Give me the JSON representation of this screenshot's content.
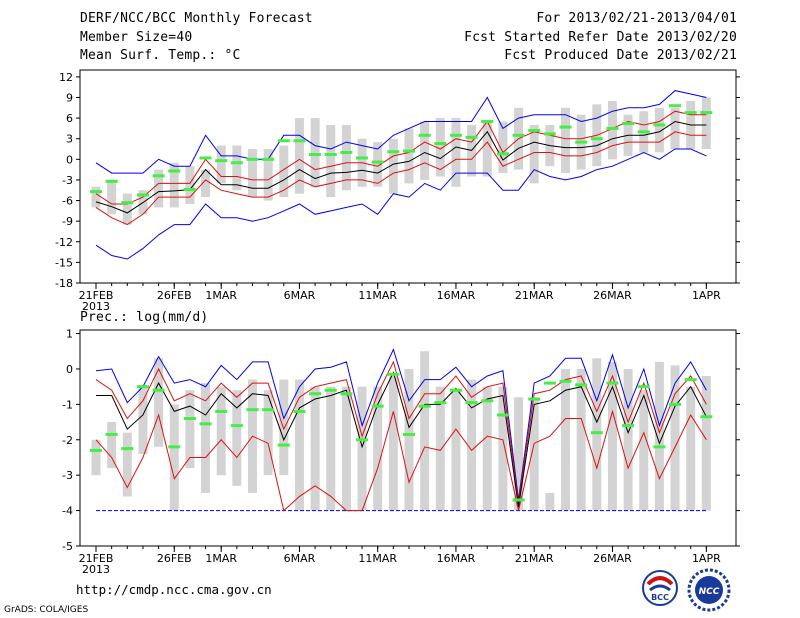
{
  "header": {
    "title": "DERF/NCC/BCC Monthly Forecast",
    "member_size": "Member Size=40",
    "variable": "Mean Surf. Temp.: °C",
    "period": "For 2013/02/21-2013/04/01",
    "fcst_started": "Fcst Started Refer Date 2013/02/20",
    "fcst_produced": "Fcst Produced Date 2013/02/21"
  },
  "footer": {
    "url": "http://cmdp.ncc.cma.gov.cn",
    "grads": "GrADS: COLA/IGES",
    "logo_left": "BCC",
    "logo_right": "NCC"
  },
  "colors": {
    "box": "#d3d3d3",
    "median": "#44ee44",
    "mean": "#000000",
    "inner_envelope": "#dd1111",
    "outer_envelope": "#0000ee"
  },
  "chart_data": [
    {
      "type": "box-ensemble",
      "title": "Mean Surf. Temp.: °C",
      "ylim": [
        -18,
        13
      ],
      "yticks": [
        12,
        9,
        6,
        3,
        0,
        -3,
        -6,
        -9,
        -12,
        -15,
        -18
      ],
      "xticks": [
        {
          "day": 0,
          "label": "21FEB",
          "sublabel": "2013"
        },
        {
          "day": 5,
          "label": "26FEB"
        },
        {
          "day": 8,
          "label": "1MAR"
        },
        {
          "day": 13,
          "label": "6MAR"
        },
        {
          "day": 18,
          "label": "11MAR"
        },
        {
          "day": 23,
          "label": "16MAR"
        },
        {
          "day": 28,
          "label": "21MAR"
        },
        {
          "day": 33,
          "label": "26MAR"
        },
        {
          "day": 39,
          "label": "1APR"
        }
      ],
      "series": {
        "box_low": [
          -7.0,
          -8.0,
          -9.5,
          -8.0,
          -7.0,
          -7.0,
          -6.5,
          -5.5,
          -3.5,
          -4.5,
          -5.5,
          -6.0,
          -5.5,
          -5.0,
          -4.0,
          -5.5,
          -4.5,
          -4.0,
          -4.0,
          -5.0,
          -3.5,
          -3.0,
          -2.5,
          -4.0,
          -2.5,
          -2.5,
          -2.0,
          -1.5,
          -3.5,
          -1.0,
          -2.0,
          -1.5,
          -1.0,
          0.0,
          0.5,
          1.0,
          1.0,
          1.5,
          1.5,
          1.5
        ],
        "box_high": [
          -4.0,
          -3.0,
          -5.0,
          -4.5,
          -1.5,
          -0.5,
          -1.0,
          -1.5,
          2.0,
          2.0,
          1.5,
          1.5,
          2.0,
          6.0,
          6.0,
          5.0,
          5.0,
          3.0,
          2.5,
          3.0,
          4.5,
          5.5,
          6.0,
          6.0,
          5.0,
          5.5,
          5.5,
          7.5,
          5.0,
          5.0,
          7.5,
          6.5,
          8.0,
          8.5,
          6.5,
          7.0,
          7.5,
          7.5,
          8.5,
          9.0
        ],
        "median": [
          -4.7,
          -3.2,
          -6.3,
          -5.2,
          -2.4,
          -1.7,
          -4.4,
          0.2,
          -0.2,
          -0.5,
          0.0,
          0.0,
          2.7,
          2.7,
          0.7,
          0.7,
          1.0,
          0.2,
          -0.4,
          1.1,
          1.2,
          3.5,
          2.3,
          3.5,
          3.2,
          5.5,
          0.8,
          3.5,
          4.2,
          3.7,
          4.7,
          2.5,
          3.0,
          4.5,
          5.2,
          4.0,
          5.0,
          7.8,
          6.8,
          6.8
        ],
        "mean": [
          -6.2,
          -6.9,
          -7.8,
          -6.3,
          -4.7,
          -4.6,
          -4.4,
          -1.5,
          -3.7,
          -3.7,
          -4.2,
          -4.2,
          -3.0,
          -1.5,
          -2.8,
          -2.0,
          -1.9,
          -1.6,
          -2.0,
          -0.7,
          -0.3,
          1.0,
          0.1,
          1.8,
          1.3,
          4.0,
          -0.1,
          1.6,
          2.5,
          2.0,
          1.7,
          1.7,
          2.0,
          3.0,
          3.5,
          3.5,
          4.0,
          5.5,
          5.0,
          5.0
        ],
        "inner_upper": [
          -5.0,
          -6.5,
          -6.5,
          -5.5,
          -3.5,
          -3.5,
          -3.5,
          0.0,
          -2.5,
          -2.5,
          -3.0,
          -3.0,
          -1.5,
          0.0,
          -1.5,
          -1.0,
          -0.5,
          -0.5,
          -1.0,
          0.5,
          1.0,
          2.5,
          1.5,
          3.0,
          2.5,
          5.5,
          1.0,
          3.0,
          4.0,
          3.5,
          3.0,
          3.0,
          3.5,
          4.5,
          5.5,
          5.0,
          5.5,
          7.0,
          6.5,
          6.5
        ],
        "inner_lower": [
          -7.0,
          -8.5,
          -9.5,
          -8.0,
          -5.5,
          -5.5,
          -5.5,
          -3.0,
          -4.5,
          -5.0,
          -5.5,
          -5.5,
          -4.5,
          -3.0,
          -4.0,
          -3.5,
          -3.0,
          -3.0,
          -3.5,
          -2.0,
          -1.5,
          -0.5,
          -1.5,
          0.0,
          0.0,
          2.5,
          -1.0,
          0.0,
          1.0,
          1.0,
          0.5,
          0.5,
          1.0,
          2.0,
          2.5,
          2.5,
          2.5,
          4.0,
          3.5,
          3.5
        ],
        "outer_upper": [
          -0.5,
          -2.0,
          -2.0,
          -2.0,
          0.0,
          -1.0,
          -1.0,
          3.5,
          0.5,
          0.5,
          0.0,
          0.0,
          3.5,
          3.5,
          2.0,
          1.5,
          2.5,
          2.0,
          1.5,
          3.5,
          4.5,
          5.5,
          5.5,
          5.5,
          5.5,
          9.0,
          4.5,
          6.0,
          6.5,
          6.5,
          6.5,
          5.5,
          6.0,
          7.0,
          7.5,
          7.5,
          8.0,
          10.0,
          9.5,
          9.0
        ],
        "outer_lower": [
          -12.5,
          -14.0,
          -14.5,
          -13.0,
          -11.0,
          -9.5,
          -9.5,
          -6.5,
          -8.5,
          -8.5,
          -9.0,
          -8.5,
          -7.5,
          -6.5,
          -8.0,
          -7.5,
          -7.0,
          -6.5,
          -8.0,
          -5.0,
          -5.5,
          -3.5,
          -4.5,
          -2.0,
          -2.0,
          -2.0,
          -4.5,
          -4.5,
          -1.5,
          -2.5,
          -3.0,
          -2.5,
          -1.5,
          -1.0,
          0.0,
          1.0,
          0.0,
          1.5,
          1.5,
          0.5
        ]
      }
    },
    {
      "type": "box-ensemble",
      "title": "Prec.: log(mm/d)",
      "ylim": [
        -5,
        1.1
      ],
      "yticks": [
        1,
        0,
        -1,
        -2,
        -3,
        -4,
        -5
      ],
      "xticks": [
        {
          "day": 0,
          "label": "21FEB",
          "sublabel": "2013"
        },
        {
          "day": 5,
          "label": "26FEB"
        },
        {
          "day": 8,
          "label": "1MAR"
        },
        {
          "day": 13,
          "label": "6MAR"
        },
        {
          "day": 18,
          "label": "11MAR"
        },
        {
          "day": 23,
          "label": "16MAR"
        },
        {
          "day": 28,
          "label": "21MAR"
        },
        {
          "day": 33,
          "label": "26MAR"
        },
        {
          "day": 39,
          "label": "1APR"
        }
      ],
      "series": {
        "box_low": [
          -3.0,
          -2.8,
          -3.6,
          -2.4,
          -2.2,
          -4.0,
          -2.8,
          -3.5,
          -3.0,
          -3.3,
          -3.5,
          -3.0,
          -3.0,
          -4.0,
          -4.0,
          -4.0,
          -4.0,
          -4.0,
          -4.0,
          -4.0,
          -4.0,
          -4.0,
          -4.0,
          -4.0,
          -4.0,
          -4.0,
          -4.0,
          -4.0,
          -4.0,
          -4.0,
          -4.0,
          -4.0,
          -4.0,
          -4.0,
          -4.0,
          -4.0,
          -4.0,
          -4.0,
          -4.0,
          -4.0
        ],
        "box_high": [
          -2.0,
          -1.5,
          -1.8,
          -0.5,
          0.3,
          -1.0,
          -0.6,
          -0.4,
          -0.5,
          -0.6,
          -0.3,
          -0.6,
          -0.3,
          -0.3,
          -0.5,
          -0.5,
          -0.5,
          -0.5,
          -0.5,
          -0.2,
          0.0,
          0.5,
          -0.5,
          -0.6,
          -0.3,
          -0.5,
          -0.5,
          -0.8,
          -0.8,
          -3.5,
          0.0,
          0.0,
          0.3,
          0.2,
          0.0,
          -0.6,
          0.2,
          0.1,
          -0.5,
          -0.2
        ],
        "median": [
          -2.3,
          -1.85,
          -2.25,
          -0.5,
          -0.6,
          -2.2,
          -1.4,
          -1.55,
          -1.2,
          -1.6,
          -1.15,
          -1.15,
          -2.15,
          -1.2,
          -0.7,
          -0.6,
          -0.7,
          -2.0,
          -1.05,
          -0.15,
          -1.85,
          -1.05,
          -0.95,
          -0.6,
          -0.95,
          -0.9,
          -1.3,
          -3.7,
          -0.85,
          -0.4,
          -0.35,
          -0.45,
          -1.8,
          -0.4,
          -1.6,
          -0.5,
          -2.2,
          -1.0,
          -0.3,
          -1.35
        ],
        "mean": [
          -0.75,
          -0.75,
          -1.7,
          -1.3,
          -0.4,
          -1.2,
          -1.05,
          -1.3,
          -0.7,
          -1.1,
          -0.7,
          -0.75,
          -2.0,
          -1.1,
          -0.85,
          -0.75,
          -0.6,
          -2.2,
          -1.0,
          -0.1,
          -1.65,
          -1.0,
          -1.0,
          -0.55,
          -1.1,
          -0.85,
          -0.75,
          -3.9,
          -1.0,
          -0.9,
          -0.6,
          -0.5,
          -1.5,
          -0.5,
          -1.8,
          -0.75,
          -2.1,
          -1.05,
          -0.5,
          -1.35
        ],
        "inner_upper": [
          -0.3,
          -0.6,
          -1.4,
          -0.9,
          0.0,
          -0.9,
          -0.7,
          -0.9,
          -0.4,
          -0.8,
          -0.4,
          -0.4,
          -1.7,
          -0.8,
          -0.5,
          -0.4,
          -0.3,
          -1.9,
          -0.7,
          0.2,
          -1.4,
          -0.7,
          -0.7,
          -0.2,
          -0.8,
          -0.5,
          -0.4,
          -3.8,
          -0.7,
          -0.6,
          -0.3,
          -0.2,
          -1.2,
          -0.2,
          -1.5,
          -0.4,
          -1.8,
          -0.7,
          -0.2,
          -1.0
        ],
        "inner_lower": [
          -2.0,
          -2.5,
          -3.35,
          -2.5,
          -1.3,
          -3.1,
          -2.5,
          -2.5,
          -2.0,
          -2.5,
          -1.9,
          -2.1,
          -4.0,
          -3.6,
          -3.3,
          -3.6,
          -4.0,
          -4.0,
          -2.8,
          -1.2,
          -3.2,
          -2.2,
          -2.3,
          -1.7,
          -2.3,
          -1.9,
          -2.0,
          -4.0,
          -2.1,
          -1.9,
          -1.4,
          -1.4,
          -2.8,
          -1.2,
          -2.8,
          -1.8,
          -3.1,
          -2.2,
          -1.3,
          -2.0
        ],
        "outer_upper": [
          -0.05,
          0.0,
          -0.95,
          -0.5,
          0.35,
          -0.4,
          -0.3,
          -0.5,
          0.1,
          -0.3,
          0.2,
          0.2,
          -1.4,
          -0.5,
          0.0,
          0.05,
          0.2,
          -1.6,
          -0.4,
          0.55,
          -0.9,
          -0.3,
          -0.3,
          0.05,
          -0.5,
          -0.2,
          -0.05,
          -3.7,
          -0.4,
          -0.2,
          0.3,
          0.3,
          -0.9,
          0.4,
          -1.1,
          0.0,
          -1.6,
          -0.4,
          0.2,
          -0.6
        ],
        "outer_lower": [
          -4.0,
          -4.0,
          -4.0,
          -4.0,
          -4.0,
          -4.0,
          -4.0,
          -4.0,
          -4.0,
          -4.0,
          -4.0,
          -4.0,
          -4.0,
          -4.0,
          -4.0,
          -4.0,
          -4.0,
          -4.0,
          -4.0,
          -4.0,
          -4.0,
          -4.0,
          -4.0,
          -4.0,
          -4.0,
          -4.0,
          -4.0,
          -4.0,
          -4.0,
          -4.0,
          -4.0,
          -4.0,
          -4.0,
          -4.0,
          -4.0,
          -4.0,
          -4.0,
          -4.0,
          -4.0,
          -4.0
        ]
      }
    }
  ]
}
